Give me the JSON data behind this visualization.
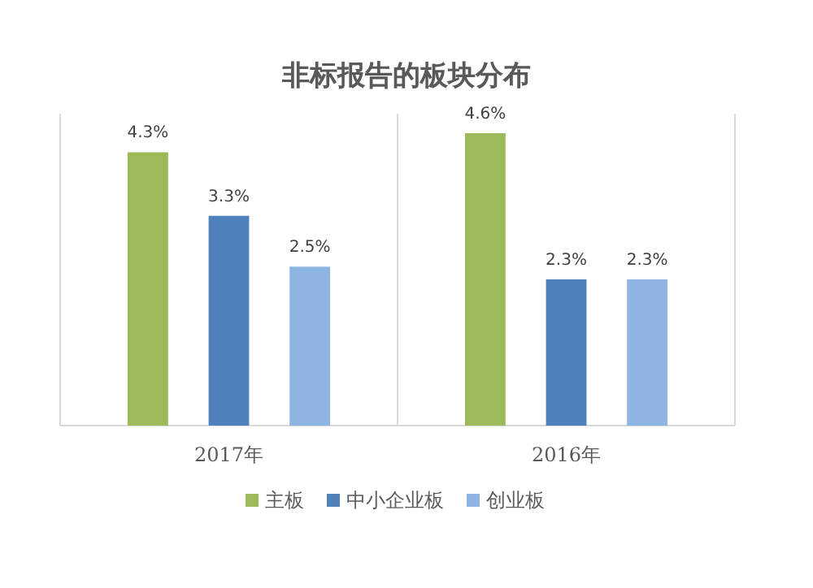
{
  "chart_data": {
    "type": "bar",
    "title": "非标报告的板块分布",
    "categories": [
      "2017年",
      "2016年"
    ],
    "series": [
      {
        "name": "主板",
        "color": "#9bbb59",
        "values": [
          4.3,
          4.6
        ],
        "value_labels": [
          "4.3%",
          "4.6%"
        ]
      },
      {
        "name": "中小企业板",
        "color": "#4f81bd",
        "values": [
          3.3,
          2.3
        ],
        "value_labels": [
          "3.3%",
          "2.3%"
        ]
      },
      {
        "name": "创业板",
        "color": "#8eb4e3",
        "values": [
          2.5,
          2.3
        ],
        "value_labels": [
          "2.5%",
          "2.3%"
        ]
      }
    ],
    "grid": "x",
    "legend": "bottom"
  }
}
